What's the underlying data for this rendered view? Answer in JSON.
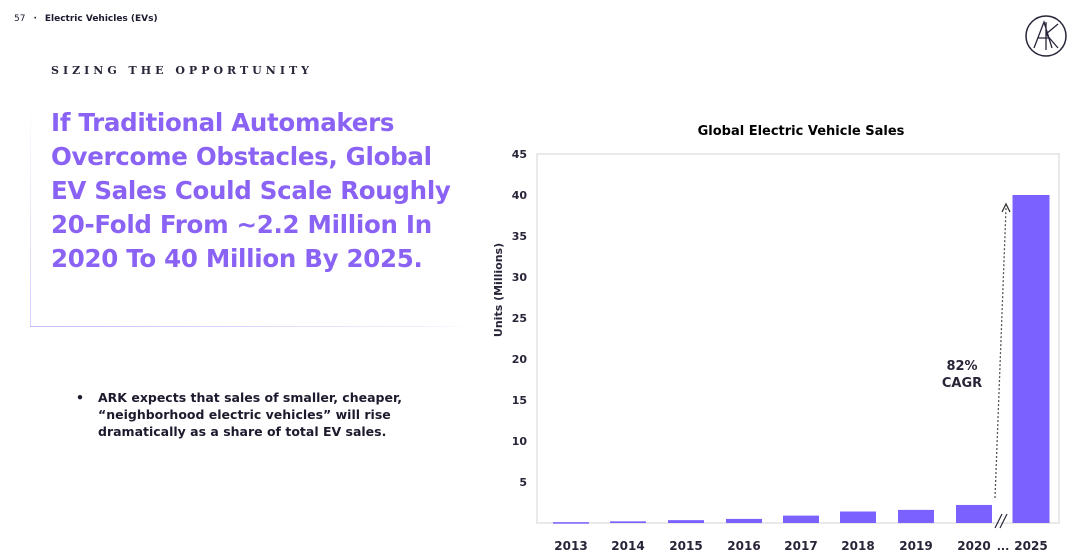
{
  "header": {
    "page_number": "57",
    "separator": "·",
    "section_title": "Electric Vehicles (EVs)"
  },
  "eyebrow": "SIZING THE OPPORTUNITY",
  "headline": "If Traditional Automakers Overcome Obstacles, Global EV Sales Could Scale Roughly 20-Fold From ~2.2 Million In 2020 To 40 Million By 2025.",
  "bullets": [
    "ARK expects that sales of smaller, cheaper, “neighborhood electric vehicles” will rise dramatically as a share of total EV sales."
  ],
  "logo": {
    "text": "ARK"
  },
  "chart_data": {
    "type": "bar",
    "title": "Global Electric Vehicle Sales",
    "xlabel": "",
    "ylabel": "Units (Millions)",
    "ylim": [
      0,
      45
    ],
    "yticks": [
      5,
      10,
      15,
      20,
      25,
      30,
      35,
      40,
      45
    ],
    "categories": [
      "2013",
      "2014",
      "2015",
      "2016",
      "2017",
      "2018",
      "2019",
      "2020",
      "2025"
    ],
    "values": [
      0.1,
      0.2,
      0.35,
      0.5,
      0.9,
      1.4,
      1.6,
      2.2,
      40
    ],
    "axis_break_label": "...",
    "annotation": {
      "line1": "82%",
      "line2": "CAGR"
    },
    "bar_color": "#7b61ff",
    "grid": false
  }
}
